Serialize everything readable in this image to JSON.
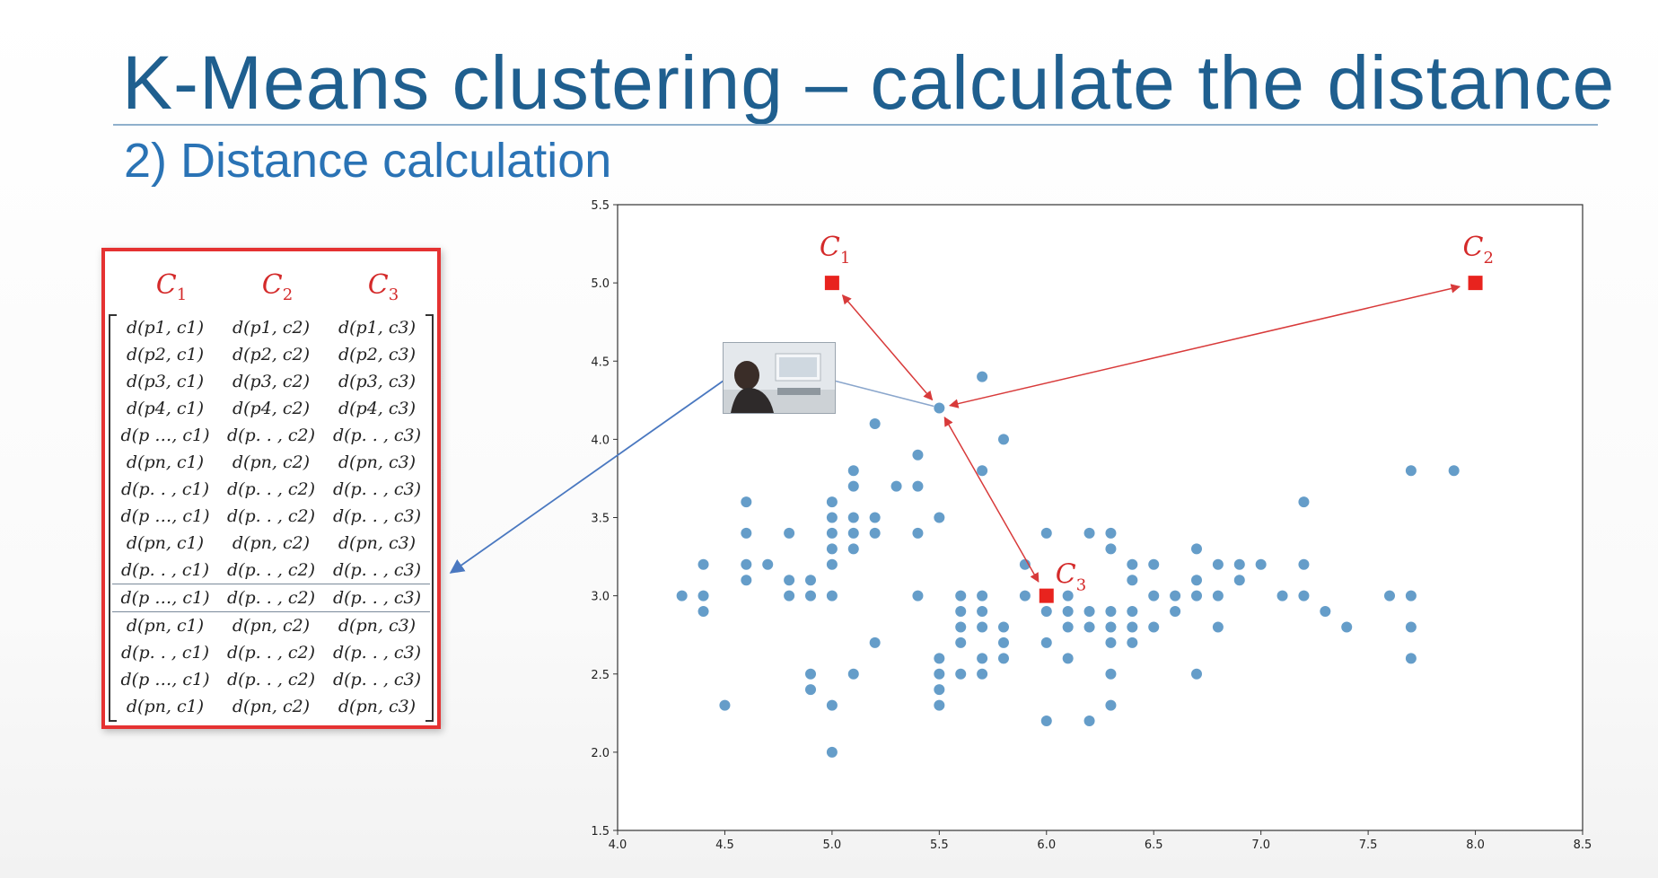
{
  "slide": {
    "title": "K-Means clustering – calculate the distance",
    "subtitle": "2) Distance calculation"
  },
  "matrix": {
    "headers": [
      "C",
      "C",
      "C"
    ],
    "header_subscripts": [
      "1",
      "2",
      "3"
    ],
    "rows": [
      [
        "d(p1, c1)",
        "d(p1, c2)",
        "d(p1, c3)"
      ],
      [
        "d(p2, c1)",
        "d(p2, c2)",
        "d(p2, c3)"
      ],
      [
        "d(p3, c1)",
        "d(p3, c2)",
        "d(p3, c3)"
      ],
      [
        "d(p4, c1)",
        "d(p4, c2)",
        "d(p4, c3)"
      ],
      [
        "d(p …, c1)",
        "d(p. . , c2)",
        "d(p. . , c3)"
      ],
      [
        "d(pn, c1)",
        "d(pn, c2)",
        "d(pn, c3)"
      ],
      [
        "d(p. . , c1)",
        "d(p. . , c2)",
        "d(p. . , c3)"
      ],
      [
        "d(p …, c1)",
        "d(p. . , c2)",
        "d(p. . , c3)"
      ],
      [
        "d(pn, c1)",
        "d(pn, c2)",
        "d(pn, c3)"
      ],
      [
        "d(p. . , c1)",
        "d(p. . , c2)",
        "d(p. . , c3)"
      ],
      [
        "d(p …, c1)",
        "d(p. . , c2)",
        "d(p. . , c3)"
      ],
      [
        "d(pn, c1)",
        "d(pn, c2)",
        "d(pn, c3)"
      ],
      [
        "d(p. . , c1)",
        "d(p. . , c2)",
        "d(p. . , c3)"
      ],
      [
        "d(p …, c1)",
        "d(p. . , c2)",
        "d(p. . , c3)"
      ],
      [
        "d(pn, c1)",
        "d(pn, c2)",
        "d(pn, c3)"
      ]
    ],
    "highlighted_row": 10
  },
  "chart_data": {
    "type": "scatter",
    "title": "",
    "xlabel": "",
    "ylabel": "",
    "xlim": [
      4.0,
      8.5
    ],
    "ylim": [
      1.5,
      5.5
    ],
    "xticks": [
      "4.0",
      "4.5",
      "5.0",
      "5.5",
      "6.0",
      "6.5",
      "7.0",
      "7.5",
      "8.0",
      "8.5"
    ],
    "yticks": [
      "1.5",
      "2.0",
      "2.5",
      "3.0",
      "3.5",
      "4.0",
      "4.5",
      "5.0",
      "5.5"
    ],
    "grid": false,
    "point_color": "#4a8cbf",
    "centroid_color": "#e8231e",
    "arrow_color": "#d83a3a",
    "points": [
      [
        4.3,
        3.0
      ],
      [
        4.4,
        2.9
      ],
      [
        4.4,
        3.0
      ],
      [
        4.4,
        3.2
      ],
      [
        4.5,
        2.3
      ],
      [
        4.6,
        3.1
      ],
      [
        4.6,
        3.2
      ],
      [
        4.6,
        3.4
      ],
      [
        4.6,
        3.6
      ],
      [
        4.7,
        3.2
      ],
      [
        4.8,
        3.0
      ],
      [
        4.8,
        3.1
      ],
      [
        4.8,
        3.4
      ],
      [
        4.9,
        2.4
      ],
      [
        4.9,
        2.5
      ],
      [
        4.9,
        3.0
      ],
      [
        4.9,
        3.1
      ],
      [
        5.0,
        2.0
      ],
      [
        5.0,
        2.3
      ],
      [
        5.0,
        3.0
      ],
      [
        5.0,
        3.2
      ],
      [
        5.0,
        3.3
      ],
      [
        5.0,
        3.4
      ],
      [
        5.0,
        3.5
      ],
      [
        5.0,
        3.6
      ],
      [
        5.1,
        2.5
      ],
      [
        5.1,
        3.3
      ],
      [
        5.1,
        3.4
      ],
      [
        5.1,
        3.5
      ],
      [
        5.1,
        3.7
      ],
      [
        5.1,
        3.8
      ],
      [
        5.2,
        2.7
      ],
      [
        5.2,
        3.4
      ],
      [
        5.2,
        3.5
      ],
      [
        5.2,
        4.1
      ],
      [
        5.3,
        3.7
      ],
      [
        5.4,
        3.0
      ],
      [
        5.4,
        3.4
      ],
      [
        5.4,
        3.7
      ],
      [
        5.4,
        3.9
      ],
      [
        5.5,
        2.3
      ],
      [
        5.5,
        2.4
      ],
      [
        5.5,
        2.5
      ],
      [
        5.5,
        2.6
      ],
      [
        5.5,
        3.5
      ],
      [
        5.5,
        4.2
      ],
      [
        5.6,
        2.5
      ],
      [
        5.6,
        2.7
      ],
      [
        5.6,
        2.8
      ],
      [
        5.6,
        2.9
      ],
      [
        5.6,
        3.0
      ],
      [
        5.7,
        2.5
      ],
      [
        5.7,
        2.6
      ],
      [
        5.7,
        2.8
      ],
      [
        5.7,
        2.9
      ],
      [
        5.7,
        3.0
      ],
      [
        5.7,
        3.8
      ],
      [
        5.7,
        4.4
      ],
      [
        5.8,
        2.6
      ],
      [
        5.8,
        2.7
      ],
      [
        5.8,
        2.8
      ],
      [
        5.8,
        4.0
      ],
      [
        5.9,
        3.0
      ],
      [
        5.9,
        3.2
      ],
      [
        6.0,
        2.2
      ],
      [
        6.0,
        2.7
      ],
      [
        6.0,
        2.9
      ],
      [
        6.0,
        3.4
      ],
      [
        6.1,
        2.6
      ],
      [
        6.1,
        2.8
      ],
      [
        6.1,
        2.9
      ],
      [
        6.1,
        3.0
      ],
      [
        6.2,
        2.2
      ],
      [
        6.2,
        2.8
      ],
      [
        6.2,
        2.9
      ],
      [
        6.2,
        3.4
      ],
      [
        6.3,
        2.3
      ],
      [
        6.3,
        2.5
      ],
      [
        6.3,
        2.7
      ],
      [
        6.3,
        2.8
      ],
      [
        6.3,
        2.9
      ],
      [
        6.3,
        3.3
      ],
      [
        6.3,
        3.4
      ],
      [
        6.4,
        2.7
      ],
      [
        6.4,
        2.8
      ],
      [
        6.4,
        2.9
      ],
      [
        6.4,
        3.1
      ],
      [
        6.4,
        3.2
      ],
      [
        6.5,
        2.8
      ],
      [
        6.5,
        3.0
      ],
      [
        6.5,
        3.2
      ],
      [
        6.6,
        2.9
      ],
      [
        6.6,
        3.0
      ],
      [
        6.7,
        2.5
      ],
      [
        6.7,
        3.0
      ],
      [
        6.7,
        3.1
      ],
      [
        6.7,
        3.3
      ],
      [
        6.8,
        2.8
      ],
      [
        6.8,
        3.0
      ],
      [
        6.8,
        3.2
      ],
      [
        6.9,
        3.1
      ],
      [
        6.9,
        3.2
      ],
      [
        7.0,
        3.2
      ],
      [
        7.1,
        3.0
      ],
      [
        7.2,
        3.0
      ],
      [
        7.2,
        3.2
      ],
      [
        7.2,
        3.6
      ],
      [
        7.3,
        2.9
      ],
      [
        7.4,
        2.8
      ],
      [
        7.6,
        3.0
      ],
      [
        7.7,
        2.6
      ],
      [
        7.7,
        2.8
      ],
      [
        7.7,
        3.0
      ],
      [
        7.7,
        3.8
      ],
      [
        7.9,
        3.8
      ]
    ],
    "centroids": [
      {
        "label": "C",
        "sub": "1",
        "x": 5.0,
        "y": 5.0
      },
      {
        "label": "C",
        "sub": "2",
        "x": 8.0,
        "y": 5.0
      },
      {
        "label": "C",
        "sub": "3",
        "x": 6.0,
        "y": 3.0
      }
    ],
    "focus_point": [
      5.5,
      4.2
    ]
  }
}
